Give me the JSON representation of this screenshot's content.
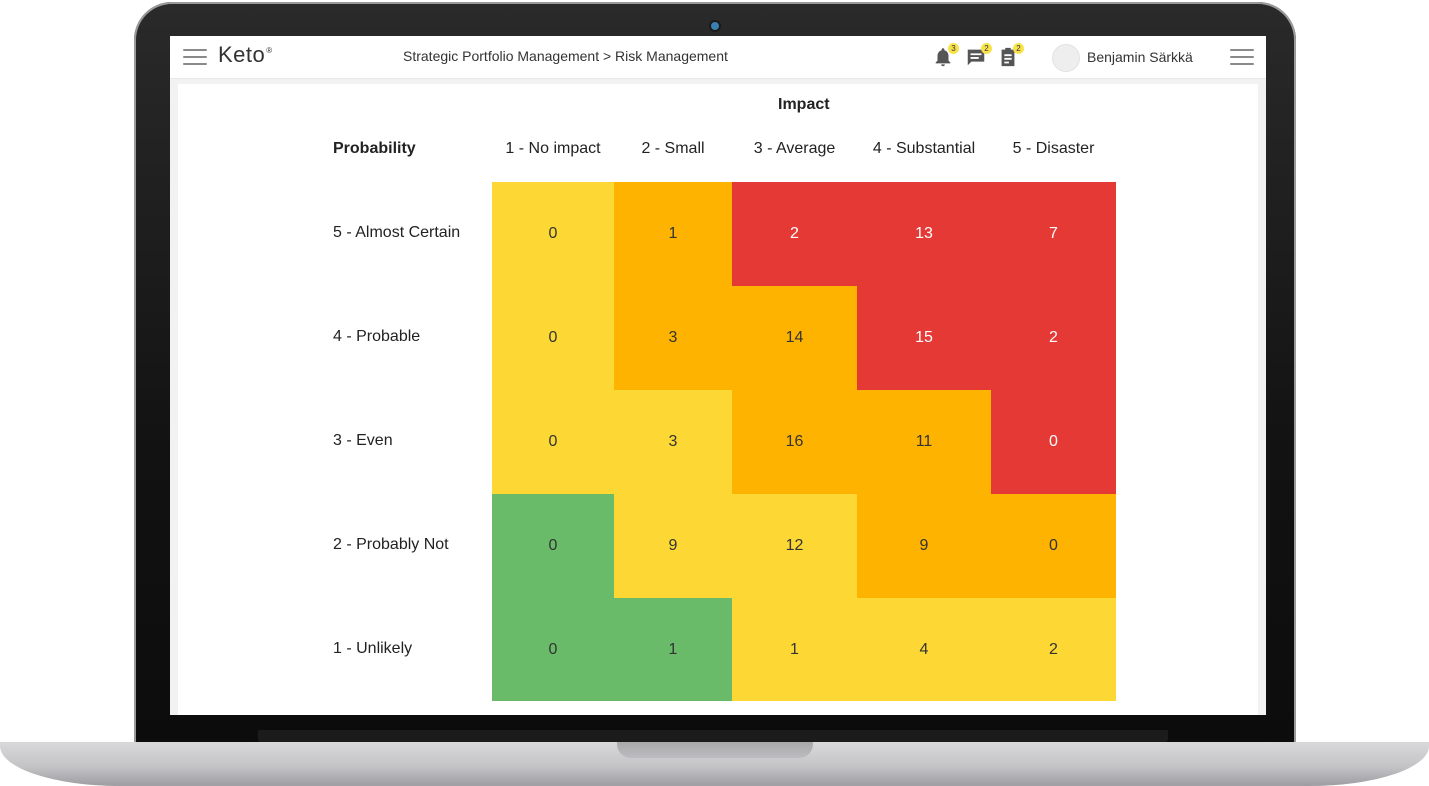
{
  "app": {
    "logo": "Keto",
    "logo_mark": "®",
    "breadcrumb": "Strategic Portfolio Management > Risk Management",
    "user": {
      "name": "Benjamin Särkkä"
    },
    "notifications": [
      {
        "icon": "bell-icon",
        "count": "3"
      },
      {
        "icon": "chat-icon",
        "count": "2"
      },
      {
        "icon": "clipboard-icon",
        "count": "2"
      }
    ]
  },
  "matrix": {
    "impact_title": "Impact",
    "probability_title": "Probability",
    "impact_levels": [
      "1 - No impact",
      "2 - Small",
      "3 - Average",
      "4 - Substantial",
      "5 - Disaster"
    ],
    "probability_levels": [
      "5 - Almost Certain",
      "4 - Probable",
      "3 - Even",
      "2 - Probably Not",
      "1 - Unlikely"
    ],
    "values": [
      [
        "0",
        "1",
        "2",
        "13",
        "7"
      ],
      [
        "0",
        "3",
        "14",
        "15",
        "2"
      ],
      [
        "0",
        "3",
        "16",
        "11",
        "0"
      ],
      [
        "0",
        "9",
        "12",
        "9",
        "0"
      ],
      [
        "0",
        "1",
        "1",
        "4",
        "2"
      ]
    ],
    "colors": [
      [
        "yellow",
        "orange",
        "red",
        "red",
        "red"
      ],
      [
        "yellow",
        "orange",
        "orange",
        "red",
        "red"
      ],
      [
        "yellow",
        "yellow",
        "orange",
        "orange",
        "red"
      ],
      [
        "green",
        "yellow",
        "yellow",
        "orange",
        "orange"
      ],
      [
        "green",
        "green",
        "yellow",
        "yellow",
        "yellow"
      ]
    ],
    "palette": {
      "green": "#69bb6a",
      "yellow": "#fdd835",
      "orange": "#fdb300",
      "red": "#e53935"
    }
  }
}
